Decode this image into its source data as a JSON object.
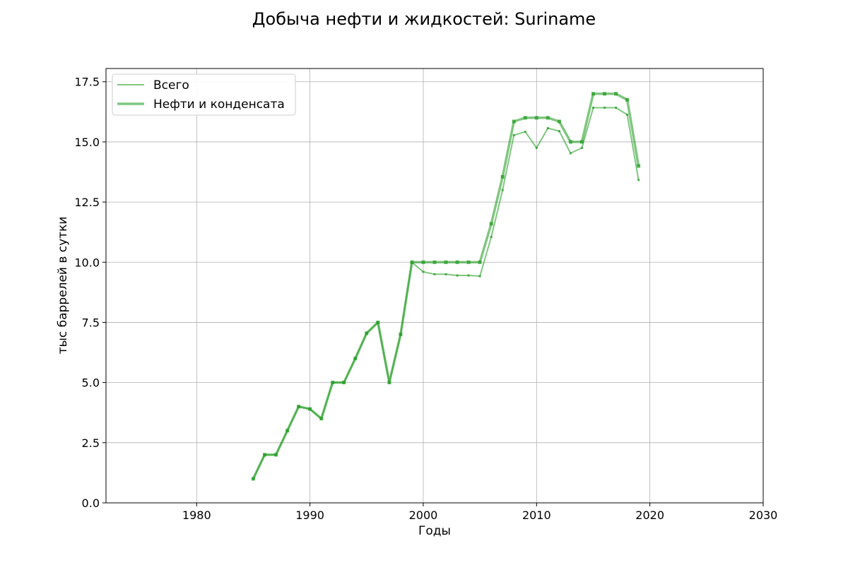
{
  "chart_data": {
    "type": "line",
    "title": "Добыча нефти и жидкостей: Suriname",
    "xlabel": "Годы",
    "ylabel": "тыс баррелей в сутки",
    "xlim": [
      1972,
      2030
    ],
    "ylim": [
      0,
      18.05
    ],
    "xticks": [
      "1980",
      "1990",
      "2000",
      "2010",
      "2020",
      "2030"
    ],
    "yticks": [
      "0.0",
      "2.5",
      "5.0",
      "7.5",
      "10.0",
      "12.5",
      "15.0",
      "17.5"
    ],
    "grid": true,
    "legend_position": "top-left",
    "series_color": "#2ca02c",
    "series": [
      {
        "name": "Всего",
        "x": [
          1985,
          1986,
          1987,
          1988,
          1989,
          1990,
          1991,
          1992,
          1993,
          1994,
          1995,
          1996,
          1997,
          1998,
          1999,
          2000,
          2001,
          2002,
          2003,
          2004,
          2005,
          2006,
          2007,
          2008,
          2009,
          2010,
          2011,
          2012,
          2013,
          2014,
          2015,
          2016,
          2017,
          2018,
          2019
        ],
        "y": [
          1.0,
          2.0,
          2.0,
          3.0,
          4.0,
          3.9,
          3.5,
          5.0,
          5.0,
          6.0,
          7.05,
          7.5,
          5.0,
          7.0,
          10.0,
          9.6,
          9.5,
          9.5,
          9.45,
          9.45,
          9.42,
          11.05,
          13.0,
          15.28,
          15.42,
          14.75,
          15.57,
          15.45,
          14.53,
          14.75,
          16.42,
          16.42,
          16.42,
          16.13,
          13.42
        ]
      },
      {
        "name": "Нефти и конденсата",
        "x": [
          1985,
          1986,
          1987,
          1988,
          1989,
          1990,
          1991,
          1992,
          1993,
          1994,
          1995,
          1996,
          1997,
          1998,
          1999,
          2000,
          2001,
          2002,
          2003,
          2004,
          2005,
          2006,
          2007,
          2008,
          2009,
          2010,
          2011,
          2012,
          2013,
          2014,
          2015,
          2016,
          2017,
          2018,
          2019
        ],
        "y": [
          1.0,
          2.0,
          2.0,
          3.0,
          4.0,
          3.9,
          3.5,
          5.0,
          5.0,
          6.0,
          7.05,
          7.5,
          5.0,
          7.0,
          10.0,
          10.0,
          10.0,
          10.0,
          10.0,
          10.0,
          10.0,
          11.6,
          13.55,
          15.85,
          16.0,
          16.0,
          16.0,
          15.85,
          15.0,
          15.0,
          17.0,
          17.0,
          17.0,
          16.75,
          14.0
        ]
      }
    ]
  }
}
